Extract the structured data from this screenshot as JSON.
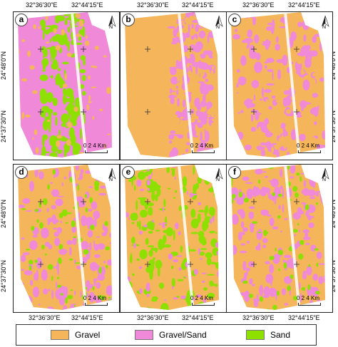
{
  "coords": {
    "lon_west": "32°36'30\"E",
    "lon_east": "32°44'15\"E",
    "lat_north": "24°48'0\"N",
    "lat_south": "24°37'30\"N"
  },
  "panels": [
    {
      "id": "a",
      "dominant": "gravel_sand",
      "patch": "sand",
      "accent": "gravel"
    },
    {
      "id": "b",
      "dominant": "gravel",
      "patch": "gravel_sand",
      "accent": "gravel"
    },
    {
      "id": "c",
      "dominant": "gravel",
      "patch": "gravel_sand",
      "accent": "gravel"
    },
    {
      "id": "d",
      "dominant": "gravel",
      "patch": "gravel_sand",
      "accent": "sand"
    },
    {
      "id": "e",
      "dominant": "gravel",
      "patch": "sand",
      "accent": "gravel_sand"
    },
    {
      "id": "f",
      "dominant": "gravel",
      "patch": "gravel_sand",
      "accent": "sand"
    }
  ],
  "scale_bar": {
    "label": "0  2  4 Km"
  },
  "north_label": "N",
  "legend": {
    "items": [
      {
        "label": "Gravel",
        "color": "#f5b55a"
      },
      {
        "label": "Gravel/Sand",
        "color": "#f08ad8"
      },
      {
        "label": "Sand",
        "color": "#8ee000"
      }
    ]
  },
  "colors": {
    "gravel": "#f5b55a",
    "gravel_sand": "#f08ad8",
    "sand": "#8ee000"
  }
}
